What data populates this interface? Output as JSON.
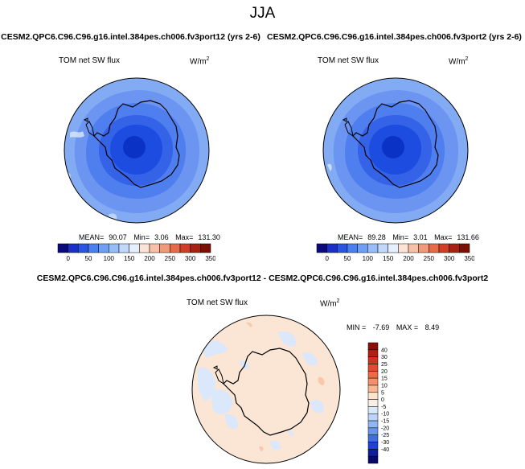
{
  "figure": {
    "season": "JJA"
  },
  "panels": [
    {
      "case_name": "CESM2.QPC6.C96.C96.g16.intel.384pes.ch006.fv3port12 (yrs 2-6)",
      "variable": "TOM net SW flux",
      "units_base": "W/m",
      "units_exp": "2",
      "stats": {
        "mean_label": "MEAN=",
        "mean": "90.07",
        "min_label": "Min=",
        "min": "3.06",
        "max_label": "Max=",
        "max": "131.30"
      }
    },
    {
      "case_name": "CESM2.QPC6.C96.C96.g16.intel.384pes.ch006.fv3port2 (yrs 2-6)",
      "variable": "TOM net SW flux",
      "units_base": "W/m",
      "units_exp": "2",
      "stats": {
        "mean_label": "MEAN=",
        "mean": "89.28",
        "min_label": "Min=",
        "min": "3.01",
        "max_label": "Max=",
        "max": "131.66"
      }
    }
  ],
  "difference": {
    "title": "CESM2.QPC6.C96.C96.g16.intel.384pes.ch006.fv3port12 - CESM2.QPC6.C96.C96.g16.intel.384pes.ch006.fv3port2",
    "variable": "TOM net SW flux",
    "units_base": "W/m",
    "units_exp": "2",
    "stats": {
      "min_label": "MIN =",
      "min": "-7.69",
      "max_label": "MAX =",
      "max": "8.49"
    }
  },
  "chart_data": [
    {
      "type": "heatmap",
      "projection": "south-polar stereographic",
      "title": "TOM net SW flux",
      "colorbar_orientation": "horizontal",
      "colorbar_ticks": [
        "0",
        "50",
        "100",
        "150",
        "200",
        "250",
        "300",
        "350"
      ],
      "colorbar_colors": [
        "#0a0a7a",
        "#1a2fc8",
        "#2a55e0",
        "#4a7ff0",
        "#6f9ff5",
        "#97bdf8",
        "#c2d8fb",
        "#e6effd",
        "#fde3d6",
        "#f8c0a6",
        "#f09a79",
        "#e56b4b",
        "#cf3f28",
        "#a8200f",
        "#7a0f05"
      ],
      "levels": [
        {
          "ring": "polar cap",
          "value_range": [
            0,
            25
          ],
          "color": "#0a33c6"
        },
        {
          "ring": "inner",
          "value_range": [
            25,
            50
          ],
          "color": "#1d4ce0"
        },
        {
          "ring": "middle",
          "value_range": [
            50,
            75
          ],
          "color": "#3e74ee"
        },
        {
          "ring": "outer",
          "value_range": [
            75,
            100
          ],
          "color": "#6090f2"
        },
        {
          "ring": "edge",
          "value_range": [
            100,
            150
          ],
          "color": "#9cc0f7"
        }
      ],
      "stats": {
        "mean": 90.07,
        "min": 3.06,
        "max": 131.3
      }
    },
    {
      "type": "heatmap",
      "projection": "south-polar stereographic",
      "title": "TOM net SW flux",
      "colorbar_orientation": "horizontal",
      "colorbar_ticks": [
        "0",
        "50",
        "100",
        "150",
        "200",
        "250",
        "300",
        "350"
      ],
      "colorbar_colors": [
        "#0a0a7a",
        "#1a2fc8",
        "#2a55e0",
        "#4a7ff0",
        "#6f9ff5",
        "#97bdf8",
        "#c2d8fb",
        "#e6effd",
        "#fde3d6",
        "#f8c0a6",
        "#f09a79",
        "#e56b4b",
        "#cf3f28",
        "#a8200f",
        "#7a0f05"
      ],
      "stats": {
        "mean": 89.28,
        "min": 3.01,
        "max": 131.66
      }
    },
    {
      "type": "heatmap",
      "projection": "south-polar stereographic",
      "title": "TOM net SW flux",
      "colorbar_orientation": "vertical",
      "colorbar_ticks": [
        "40",
        "30",
        "25",
        "20",
        "15",
        "10",
        "5",
        "0",
        "-5",
        "-10",
        "-15",
        "-20",
        "-25",
        "-30",
        "-40"
      ],
      "colorbar_colors": [
        "#8a1006",
        "#b0200f",
        "#cc3320",
        "#e04b2f",
        "#ee6a45",
        "#f5906b",
        "#f9b893",
        "#fde2ce",
        "#fbeee4",
        "#dbe8fb",
        "#bcd3f9",
        "#92b6f4",
        "#6a95ee",
        "#3f6de6",
        "#1e44cf",
        "#0d1f9e",
        "#070a6a"
      ],
      "stats": {
        "min": -7.69,
        "max": 8.49
      }
    }
  ]
}
